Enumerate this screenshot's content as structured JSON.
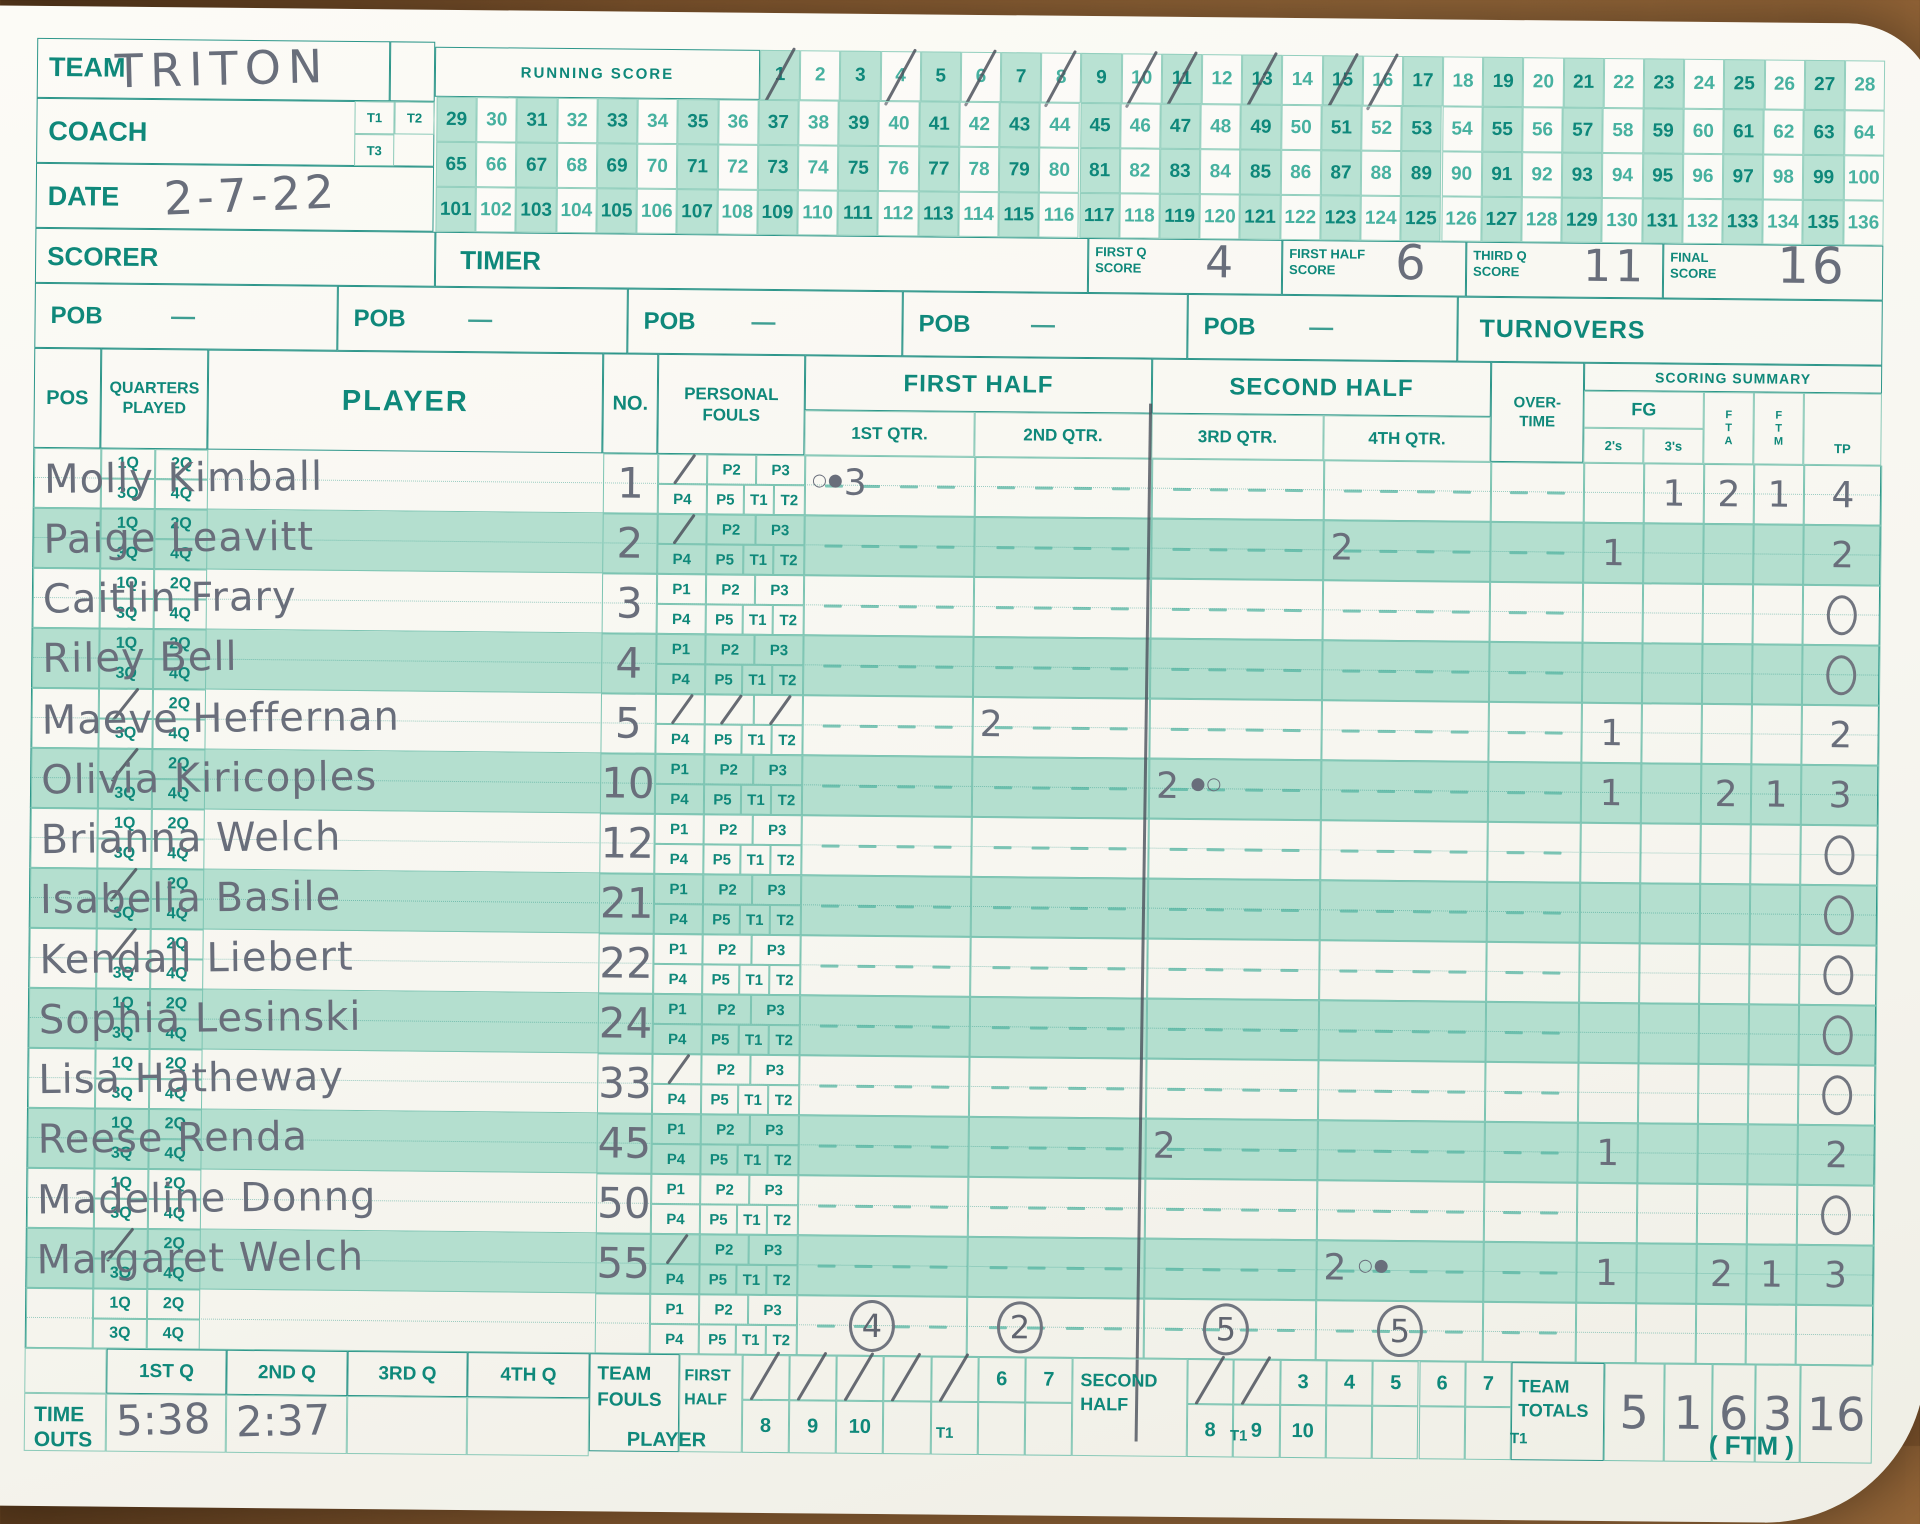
{
  "header": {
    "team_label": "TEAM",
    "team_value": "TRITON",
    "coach_label": "COACH",
    "coach_value": "",
    "date_label": "DATE",
    "date_value": "2-7-22",
    "scorer_label": "SCORER",
    "scorer_value": "",
    "timer_label": "TIMER",
    "timer_value": "",
    "timeout_boxes": [
      "T1",
      "T2",
      "T3"
    ]
  },
  "running_score": {
    "label": "RUNNING SCORE",
    "first": 1,
    "last": 136,
    "row1_count": 28,
    "crossed": [
      1,
      4,
      6,
      8,
      10,
      11,
      13,
      15,
      16
    ]
  },
  "period_scores": {
    "first_q_label": "FIRST Q SCORE",
    "first_q": "4",
    "first_half_label": "FIRST HALF SCORE",
    "first_half": "6",
    "third_q_label": "THIRD Q SCORE",
    "third_q": "11",
    "final_label": "FINAL SCORE",
    "final": "16"
  },
  "pob": {
    "label": "POB",
    "dash": "—",
    "count": 5,
    "turnovers_label": "TURNOVERS"
  },
  "table": {
    "pos_label": "POS",
    "quarters_label": "QUARTERS PLAYED",
    "player_label": "PLAYER",
    "no_label": "NO.",
    "fouls_label": "PERSONAL FOULS",
    "first_half_label": "FIRST HALF",
    "second_half_label": "SECOND HALF",
    "q_labels": [
      "1ST QTR.",
      "2ND QTR.",
      "3RD QTR.",
      "4TH QTR."
    ],
    "overtime_label": "OVER-TIME",
    "summary_label": "SCORING SUMMARY",
    "fg_label": "FG",
    "s2_label": "2's",
    "s3_label": "3's",
    "fta_label": "FTA",
    "ftm_label": "FTM",
    "tp_label": "TP",
    "qp_cells": [
      "1Q",
      "2Q",
      "3Q",
      "4Q"
    ],
    "foul_cells": [
      "P1",
      "P2",
      "P3",
      "P4",
      "P5",
      "T1",
      "T2"
    ]
  },
  "players": [
    {
      "name": "Molly Kimball",
      "no": "1",
      "qp_crossed": [],
      "fouls_crossed": [
        "P1"
      ],
      "q1": "○●3",
      "q2": "",
      "q3": "",
      "q4": "",
      "s2": "",
      "s3": "1",
      "fta": "2",
      "ftm": "1",
      "tp": "4"
    },
    {
      "name": "Paige Leavitt",
      "no": "2",
      "qp_crossed": [],
      "fouls_crossed": [
        "P1"
      ],
      "q1": "",
      "q2": "",
      "q3": "",
      "q4": "2",
      "s2": "1",
      "s3": "",
      "fta": "",
      "ftm": "",
      "tp": "2"
    },
    {
      "name": "Caitlin Frary",
      "no": "3",
      "qp_crossed": [],
      "fouls_crossed": [],
      "q1": "",
      "q2": "",
      "q3": "",
      "q4": "",
      "s2": "",
      "s3": "",
      "fta": "",
      "ftm": "",
      "tp": "0"
    },
    {
      "name": "Riley Bell",
      "no": "4",
      "qp_crossed": [],
      "fouls_crossed": [],
      "q1": "",
      "q2": "",
      "q3": "",
      "q4": "",
      "s2": "",
      "s3": "",
      "fta": "",
      "ftm": "",
      "tp": "0"
    },
    {
      "name": "Maeve Heffernan",
      "no": "5",
      "qp_crossed": [
        "1Q"
      ],
      "fouls_crossed": [
        "P1",
        "P2",
        "P3"
      ],
      "q1": "",
      "q2": "2",
      "q3": "",
      "q4": "",
      "s2": "1",
      "s3": "",
      "fta": "",
      "ftm": "",
      "tp": "2"
    },
    {
      "name": "Olivia Kiricoples",
      "no": "10",
      "qp_crossed": [
        "1Q"
      ],
      "fouls_crossed": [],
      "q1": "",
      "q2": "",
      "q3": "2 ●○",
      "q4": "",
      "s2": "1",
      "s3": "",
      "fta": "2",
      "ftm": "1",
      "tp": "3"
    },
    {
      "name": "Brianna Welch",
      "no": "12",
      "qp_crossed": [],
      "fouls_crossed": [],
      "q1": "",
      "q2": "",
      "q3": "",
      "q4": "",
      "s2": "",
      "s3": "",
      "fta": "",
      "ftm": "",
      "tp": "0"
    },
    {
      "name": "Isabella Basile",
      "no": "21",
      "qp_crossed": [
        "1Q"
      ],
      "fouls_crossed": [],
      "q1": "",
      "q2": "",
      "q3": "",
      "q4": "",
      "s2": "",
      "s3": "",
      "fta": "",
      "ftm": "",
      "tp": "0"
    },
    {
      "name": "Kendall Liebert",
      "no": "22",
      "qp_crossed": [
        "1Q"
      ],
      "fouls_crossed": [],
      "q1": "",
      "q2": "",
      "q3": "",
      "q4": "",
      "s2": "",
      "s3": "",
      "fta": "",
      "ftm": "",
      "tp": "0"
    },
    {
      "name": "Sophia Lesinski",
      "no": "24",
      "qp_crossed": [],
      "fouls_crossed": [],
      "q1": "",
      "q2": "",
      "q3": "",
      "q4": "",
      "s2": "",
      "s3": "",
      "fta": "",
      "ftm": "",
      "tp": "0"
    },
    {
      "name": "Lisa Hatheway",
      "no": "33",
      "qp_crossed": [],
      "fouls_crossed": [
        "P1"
      ],
      "q1": "",
      "q2": "",
      "q3": "",
      "q4": "",
      "s2": "",
      "s3": "",
      "fta": "",
      "ftm": "",
      "tp": "0"
    },
    {
      "name": "Reese Renda",
      "no": "45",
      "qp_crossed": [],
      "fouls_crossed": [],
      "q1": "",
      "q2": "",
      "q3": "2",
      "q4": "",
      "s2": "1",
      "s3": "",
      "fta": "",
      "ftm": "",
      "tp": "2"
    },
    {
      "name": "Madeline Donng",
      "no": "50",
      "qp_crossed": [],
      "fouls_crossed": [],
      "q1": "",
      "q2": "",
      "q3": "",
      "q4": "",
      "s2": "",
      "s3": "",
      "fta": "",
      "ftm": "",
      "tp": "0"
    },
    {
      "name": "Margaret Welch",
      "no": "55",
      "qp_crossed": [
        "1Q"
      ],
      "fouls_crossed": [
        "P1"
      ],
      "q1": "",
      "q2": "",
      "q3": "",
      "q4": "2 ○●",
      "s2": "1",
      "s3": "",
      "fta": "2",
      "ftm": "1",
      "tp": "3"
    },
    {
      "name": "",
      "no": "",
      "qp_crossed": [],
      "fouls_crossed": [],
      "q1": "",
      "q2": "",
      "q3": "",
      "q4": "",
      "q1_circled": "4",
      "q2_circled": "2",
      "q3_circled": "5",
      "q4_circled": "5",
      "s2": "",
      "s3": "",
      "fta": "",
      "ftm": "",
      "tp": ""
    }
  ],
  "team_fouls": {
    "team_label": "TEAM",
    "fouls_label": "FOULS",
    "first_half_label": "FIRST HALF",
    "second_half_label": "SECOND HALF",
    "numbers": [
      "1",
      "2",
      "3",
      "4",
      "5",
      "6",
      "7"
    ],
    "extra_numbers": [
      "8",
      "9",
      "10"
    ],
    "first_half_crossed": [
      1,
      2,
      3,
      4,
      5
    ],
    "second_half_crossed": [
      1,
      2
    ]
  },
  "team_totals": {
    "label": "TEAM TOTALS",
    "values": [
      "5",
      "1",
      "6",
      "3",
      "16"
    ]
  },
  "time_outs": {
    "label": "TIME OUTS",
    "headers": [
      "1ST Q",
      "2ND Q",
      "3RD Q",
      "4TH Q"
    ],
    "values": [
      "5:38",
      "2:37",
      "",
      ""
    ]
  },
  "bottom_row": {
    "player_label": "PLAYER",
    "t1_label": "T1",
    "ftm_label": "( FTM )"
  },
  "colors": {
    "print_teal": "#0f887a",
    "stripe_green": "#b4dfcf",
    "pencil_gray": "#696e7b"
  }
}
